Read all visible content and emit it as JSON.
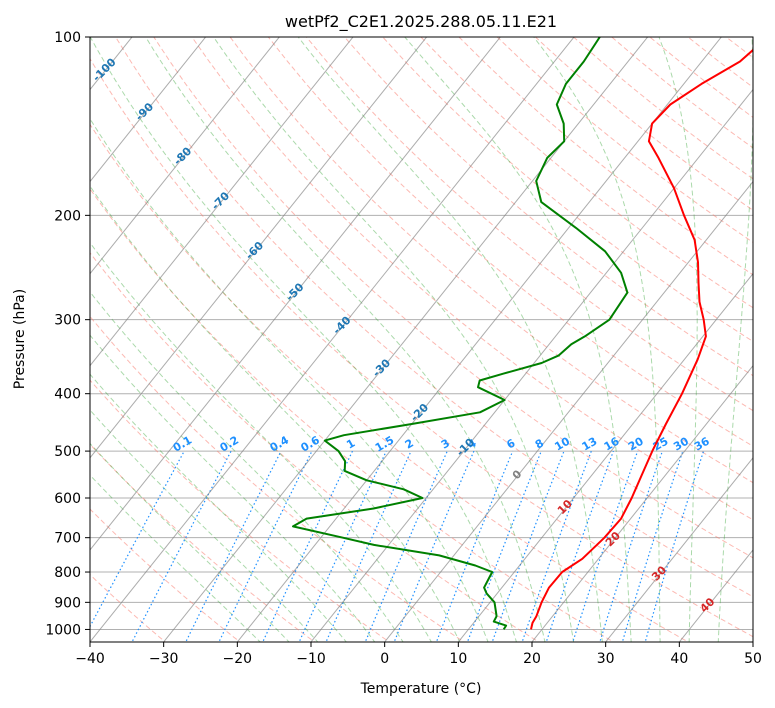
{
  "chart_data": {
    "type": "line",
    "chart_kind": "Skew-T log-P diagram",
    "title": "wetPf2_C2E1.2025.288.05.11.E21",
    "xlabel": "Temperature (°C)",
    "ylabel": "Pressure (hPa)",
    "xlim": [
      -40,
      50
    ],
    "ylim": [
      1050,
      100
    ],
    "y_scale": "log",
    "grid": true,
    "x_ticks": [
      -40,
      -30,
      -20,
      -10,
      0,
      10,
      20,
      30,
      40,
      50
    ],
    "y_ticks": [
      100,
      200,
      300,
      400,
      500,
      600,
      700,
      800,
      900,
      1000
    ],
    "colors": {
      "temperature": "#ff0000",
      "dewpoint": "#008000",
      "dry_adiabat": "#fa8072",
      "moist_adiabat": "#2ca02c",
      "mixing_ratio": "#1e90ff",
      "isotherm": "#808080",
      "isotherm_label": "#1f77b4",
      "isotherm_label_hot": "#d62728",
      "isotherm_label_zero": "#808080"
    },
    "series": [
      {
        "role": "temperature",
        "points": [
          [
            1000,
            18.5
          ],
          [
            975,
            18.0
          ],
          [
            950,
            17.8
          ],
          [
            900,
            17.0
          ],
          [
            850,
            16.4
          ],
          [
            800,
            16.5
          ],
          [
            760,
            17.8
          ],
          [
            700,
            18.5
          ],
          [
            650,
            18.7
          ],
          [
            600,
            17.9
          ],
          [
            550,
            16.8
          ],
          [
            500,
            15.6
          ],
          [
            450,
            14.5
          ],
          [
            400,
            13.4
          ],
          [
            350,
            11.8
          ],
          [
            320,
            10.4
          ],
          [
            300,
            8.3
          ],
          [
            280,
            5.8
          ],
          [
            260,
            3.6
          ],
          [
            240,
            1.3
          ],
          [
            220,
            -1.6
          ],
          [
            200,
            -5.7
          ],
          [
            180,
            -10.0
          ],
          [
            160,
            -15.4
          ],
          [
            150,
            -18.5
          ],
          [
            140,
            -20.0
          ],
          [
            130,
            -19.6
          ],
          [
            120,
            -17.6
          ],
          [
            110,
            -14.8
          ],
          [
            100,
            -13.7
          ]
        ]
      },
      {
        "role": "dewpoint",
        "points": [
          [
            1000,
            14.8
          ],
          [
            985,
            14.7
          ],
          [
            970,
            12.6
          ],
          [
            950,
            12.4
          ],
          [
            900,
            10.6
          ],
          [
            870,
            8.6
          ],
          [
            850,
            7.6
          ],
          [
            800,
            7.0
          ],
          [
            780,
            4.0
          ],
          [
            750,
            -2.0
          ],
          [
            720,
            -12.0
          ],
          [
            700,
            -17.0
          ],
          [
            670,
            -25.0
          ],
          [
            650,
            -24.0
          ],
          [
            625,
            -16.0
          ],
          [
            600,
            -10.5
          ],
          [
            580,
            -14.0
          ],
          [
            560,
            -20.0
          ],
          [
            540,
            -24.0
          ],
          [
            520,
            -25.0
          ],
          [
            500,
            -27.0
          ],
          [
            480,
            -30.0
          ],
          [
            470,
            -28.0
          ],
          [
            450,
            -20.0
          ],
          [
            430,
            -12.0
          ],
          [
            410,
            -10.0
          ],
          [
            390,
            -15.0
          ],
          [
            380,
            -15.5
          ],
          [
            370,
            -13.0
          ],
          [
            355,
            -9.0
          ],
          [
            345,
            -7.5
          ],
          [
            330,
            -7.0
          ],
          [
            320,
            -6.0
          ],
          [
            300,
            -4.5
          ],
          [
            270,
            -5.0
          ],
          [
            250,
            -8.0
          ],
          [
            230,
            -12.5
          ],
          [
            210,
            -19.0
          ],
          [
            190,
            -26.5
          ],
          [
            175,
            -29.5
          ],
          [
            160,
            -30.5
          ],
          [
            150,
            -30.0
          ],
          [
            140,
            -32.0
          ],
          [
            130,
            -35.0
          ],
          [
            120,
            -36.0
          ],
          [
            110,
            -36.0
          ],
          [
            100,
            -36.5
          ]
        ]
      }
    ],
    "isotherm_labels": [
      "-100",
      "-90",
      "-80",
      "-70",
      "-60",
      "-50",
      "-40",
      "-30",
      "-20",
      "-10",
      "0",
      "10",
      "20",
      "30",
      "40"
    ],
    "mixing_ratio_labels": [
      "0.1",
      "0.2",
      "0.4",
      "0.6",
      "1",
      "1.5",
      "2",
      "3",
      "4",
      "6",
      "8",
      "10",
      "13",
      "16",
      "20",
      "25",
      "30",
      "36"
    ]
  }
}
